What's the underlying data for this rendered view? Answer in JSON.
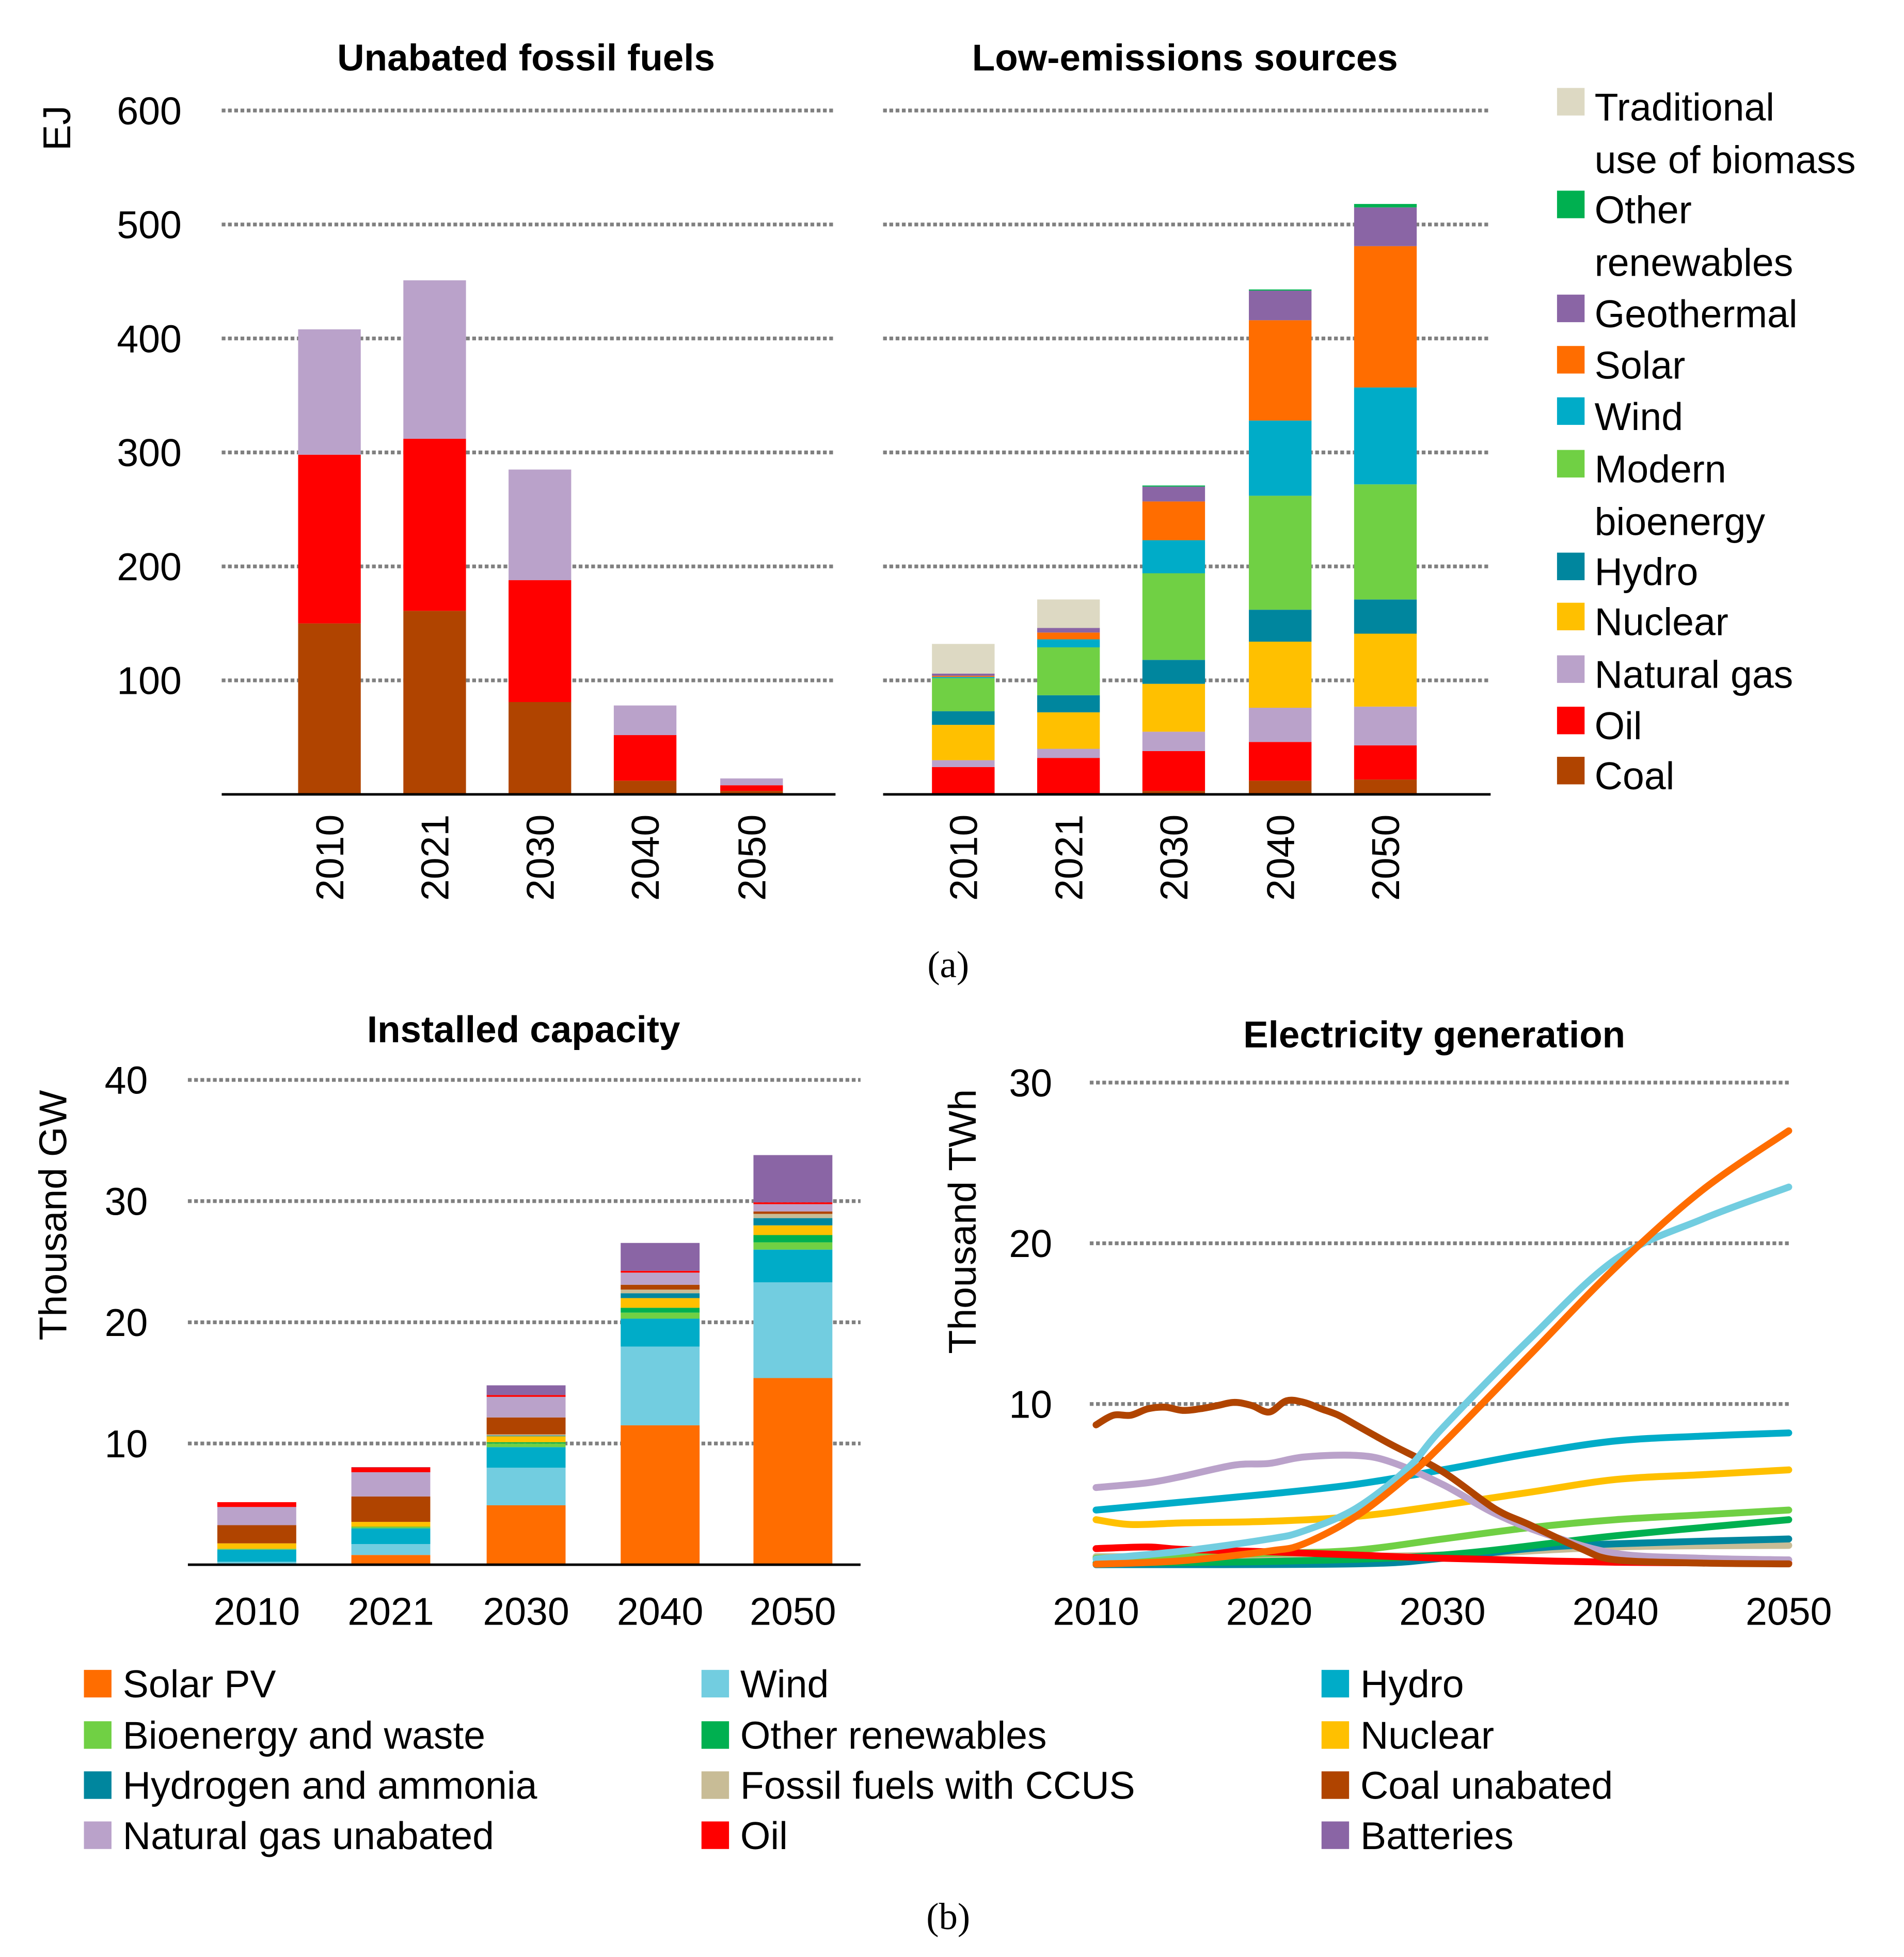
{
  "captions": {
    "a": "(a)",
    "b": "(b)"
  },
  "colors": {
    "traditional_biomass": "#ddd9c3",
    "other_renewables": "#00b050",
    "geothermal": "#8a65a5",
    "solar": "#ff6d00",
    "wind_a": "#00acc8",
    "modern_bio": "#70d044",
    "hydro_a": "#00869e",
    "nuclear": "#ffc000",
    "natural_gas": "#baa2ca",
    "oil": "#ff0000",
    "coal": "#b04400",
    "wind_b": "#72cde0",
    "hydro_b": "#00acc8",
    "hydrogen": "#00869e",
    "ccus": "#c8bc96",
    "batteries": "#8a65a5"
  },
  "legend_a": [
    "Traditional use of biomass",
    "Other renewables",
    "Geothermal",
    "Solar",
    "Wind",
    "Modern bioenergy",
    "Hydro",
    "Nuclear",
    "Natural gas",
    "Oil",
    "Coal"
  ],
  "legend_b": [
    "Solar PV",
    "Wind",
    "Hydro",
    "Bioenergy and waste",
    "Other renewables",
    "Nuclear",
    "Hydrogen and ammonia",
    "Fossil fuels with CCUS",
    "Coal unabated",
    "Natural gas unabated",
    "Oil",
    "Batteries"
  ],
  "chart_data": [
    {
      "type": "bar",
      "stacked": true,
      "title": "Unabated fossil fuels",
      "ylabel": "EJ",
      "ylim": [
        0,
        600
      ],
      "yticks": [
        100,
        200,
        300,
        400,
        500,
        600
      ],
      "grid": true,
      "categories": [
        "2010",
        "2021",
        "2030",
        "2040",
        "2050"
      ],
      "series": [
        {
          "name": "Coal",
          "color": "#b04400",
          "values": [
            150,
            161,
            81,
            12,
            3
          ]
        },
        {
          "name": "Oil",
          "color": "#ff0000",
          "values": [
            148,
            151,
            107,
            40,
            5
          ]
        },
        {
          "name": "Natural gas",
          "color": "#baa2ca",
          "values": [
            110,
            139,
            97,
            26,
            6
          ]
        }
      ]
    },
    {
      "type": "bar",
      "stacked": true,
      "title": "Low-emissions sources",
      "ylim": [
        0,
        600
      ],
      "yticks": [
        100,
        200,
        300,
        400,
        500,
        600
      ],
      "grid": true,
      "legend": "right",
      "categories": [
        "2010",
        "2021",
        "2030",
        "2040",
        "2050"
      ],
      "series": [
        {
          "name": "Coal",
          "color": "#b04400",
          "values": [
            0,
            0,
            3,
            12,
            13
          ]
        },
        {
          "name": "Oil",
          "color": "#ff0000",
          "values": [
            24,
            32,
            35,
            34,
            30
          ]
        },
        {
          "name": "Natural gas",
          "color": "#baa2ca",
          "values": [
            6,
            8,
            17,
            30,
            34
          ]
        },
        {
          "name": "Nuclear",
          "color": "#ffc000",
          "values": [
            31,
            32,
            42,
            58,
            64
          ]
        },
        {
          "name": "Hydro",
          "color": "#00869e",
          "values": [
            12,
            15,
            21,
            28,
            30
          ]
        },
        {
          "name": "Modern bioenergy",
          "color": "#70d044",
          "values": [
            29,
            42,
            76,
            100,
            101
          ]
        },
        {
          "name": "Wind",
          "color": "#00acc8",
          "values": [
            1,
            7,
            29,
            66,
            85
          ]
        },
        {
          "name": "Solar",
          "color": "#ff6d00",
          "values": [
            1,
            6,
            34,
            88,
            124
          ]
        },
        {
          "name": "Geothermal",
          "color": "#8a65a5",
          "values": [
            2,
            4,
            13,
            26,
            34
          ]
        },
        {
          "name": "Other renewables",
          "color": "#00b050",
          "values": [
            0,
            0,
            1,
            1,
            3
          ]
        },
        {
          "name": "Traditional use of biomass",
          "color": "#ddd9c3",
          "values": [
            26,
            25,
            0,
            0,
            0
          ]
        }
      ]
    },
    {
      "type": "bar",
      "stacked": true,
      "title": "Installed capacity",
      "ylabel": "Thousand GW",
      "ylim": [
        0,
        40
      ],
      "yticks": [
        10,
        20,
        30,
        40
      ],
      "grid": true,
      "legend": "bottom",
      "categories": [
        "2010",
        "2021",
        "2030",
        "2040",
        "2050"
      ],
      "series": [
        {
          "name": "Solar PV",
          "color": "#ff6d00",
          "values": [
            0.04,
            0.8,
            4.9,
            11.5,
            15.4
          ]
        },
        {
          "name": "Wind",
          "color": "#72cde0",
          "values": [
            0.2,
            0.9,
            3.1,
            6.5,
            7.9
          ]
        },
        {
          "name": "Hydro",
          "color": "#00acc8",
          "values": [
            1.0,
            1.3,
            1.7,
            2.3,
            2.7
          ]
        },
        {
          "name": "Bioenergy and waste",
          "color": "#70d044",
          "values": [
            0.05,
            0.1,
            0.3,
            0.5,
            0.6
          ]
        },
        {
          "name": "Other renewables",
          "color": "#00b050",
          "values": [
            0.02,
            0.03,
            0.1,
            0.4,
            0.6
          ]
        },
        {
          "name": "Nuclear",
          "color": "#ffc000",
          "values": [
            0.45,
            0.4,
            0.5,
            0.8,
            0.8
          ]
        },
        {
          "name": "Hydrogen and ammonia",
          "color": "#00869e",
          "values": [
            0,
            0,
            0.05,
            0.4,
            0.6
          ]
        },
        {
          "name": "Fossil fuels with CCUS",
          "color": "#c8bc96",
          "values": [
            0,
            0,
            0.1,
            0.3,
            0.35
          ]
        },
        {
          "name": "Coal unabated",
          "color": "#b04400",
          "values": [
            1.5,
            2.1,
            1.4,
            0.4,
            0.2
          ]
        },
        {
          "name": "Natural gas unabated",
          "color": "#baa2ca",
          "values": [
            1.5,
            2.0,
            1.7,
            1.0,
            0.6
          ]
        },
        {
          "name": "Oil",
          "color": "#ff0000",
          "values": [
            0.4,
            0.4,
            0.15,
            0.15,
            0.15
          ]
        },
        {
          "name": "Batteries",
          "color": "#8a65a5",
          "values": [
            0,
            0.02,
            0.8,
            2.3,
            3.9
          ]
        }
      ]
    },
    {
      "type": "line",
      "title": "Electricity generation",
      "ylabel": "Thousand TWh",
      "ylim": [
        0,
        30
      ],
      "xlim": [
        2010,
        2050
      ],
      "yticks": [
        10,
        20,
        30
      ],
      "xticks": [
        2010,
        2020,
        2030,
        2040,
        2050
      ],
      "grid": true,
      "series": [
        {
          "name": "Fossil fuels with CCUS",
          "color": "#c8bc96",
          "x": [
            2010,
            2020,
            2030,
            2040,
            2050
          ],
          "y": [
            0.5,
            0.5,
            0.6,
            1.1,
            1.2
          ]
        },
        {
          "name": "Hydrogen and ammonia",
          "color": "#00869e",
          "x": [
            2010,
            2025,
            2030,
            2035,
            2040,
            2050
          ],
          "y": [
            0,
            0.05,
            0.4,
            1.0,
            1.3,
            1.6
          ]
        },
        {
          "name": "Other renewables",
          "color": "#00b050",
          "x": [
            2010,
            2020,
            2030,
            2040,
            2050
          ],
          "y": [
            0.1,
            0.2,
            0.6,
            1.8,
            2.8
          ]
        },
        {
          "name": "Bioenergy and waste",
          "color": "#70d044",
          "x": [
            2010,
            2020,
            2025,
            2030,
            2035,
            2040,
            2045,
            2050
          ],
          "y": [
            0.4,
            0.7,
            0.9,
            1.6,
            2.3,
            2.8,
            3.1,
            3.4
          ]
        },
        {
          "name": "Oil",
          "color": "#ff0000",
          "x": [
            2010,
            2013,
            2015,
            2020,
            2025,
            2030,
            2040,
            2050
          ],
          "y": [
            1.0,
            1.1,
            0.95,
            0.8,
            0.6,
            0.4,
            0.15,
            0.1
          ]
        },
        {
          "name": "Nuclear",
          "color": "#ffc000",
          "x": [
            2010,
            2012,
            2015,
            2020,
            2025,
            2030,
            2035,
            2040,
            2045,
            2050
          ],
          "y": [
            2.8,
            2.5,
            2.6,
            2.7,
            3.0,
            3.7,
            4.5,
            5.3,
            5.6,
            5.9
          ]
        },
        {
          "name": "Hydro",
          "color": "#00acc8",
          "x": [
            2010,
            2015,
            2020,
            2025,
            2030,
            2035,
            2040,
            2045,
            2050
          ],
          "y": [
            3.4,
            3.9,
            4.4,
            5.0,
            5.9,
            6.9,
            7.7,
            8.0,
            8.2
          ]
        },
        {
          "name": "Natural gas unabated",
          "color": "#baa2ca",
          "x": [
            2010,
            2013,
            2015,
            2018,
            2020,
            2022,
            2025,
            2027,
            2030,
            2033,
            2036,
            2040,
            2045,
            2050
          ],
          "y": [
            4.8,
            5.1,
            5.5,
            6.2,
            6.3,
            6.7,
            6.8,
            6.4,
            5.0,
            3.2,
            1.9,
            0.7,
            0.4,
            0.3
          ]
        },
        {
          "name": "Coal unabated",
          "color": "#b04400",
          "x": [
            2010,
            2011,
            2012,
            2013,
            2014,
            2015,
            2016,
            2017,
            2018,
            2019,
            2020,
            2021,
            2022,
            2023,
            2024,
            2025,
            2027,
            2030,
            2033,
            2035,
            2038,
            2040,
            2045,
            2050
          ],
          "y": [
            8.7,
            9.3,
            9.3,
            9.7,
            9.8,
            9.6,
            9.7,
            9.9,
            10.1,
            9.9,
            9.5,
            10.2,
            10.1,
            9.7,
            9.3,
            8.7,
            7.5,
            5.8,
            3.5,
            2.5,
            1.0,
            0.3,
            0.1,
            0.05
          ]
        },
        {
          "name": "Wind",
          "color": "#72cde0",
          "x": [
            2010,
            2015,
            2020,
            2022,
            2025,
            2028,
            2030,
            2035,
            2040,
            2045,
            2050
          ],
          "y": [
            0.35,
            0.85,
            1.6,
            2.1,
            3.5,
            6,
            8.5,
            14,
            19,
            21.5,
            23.5
          ]
        },
        {
          "name": "Solar PV",
          "color": "#ff6d00",
          "x": [
            2010,
            2015,
            2020,
            2022,
            2025,
            2028,
            2030,
            2035,
            2040,
            2045,
            2050
          ],
          "y": [
            0.03,
            0.25,
            0.85,
            1.3,
            3.0,
            5.5,
            7.5,
            13,
            18.5,
            23.3,
            27.0
          ]
        }
      ]
    }
  ]
}
